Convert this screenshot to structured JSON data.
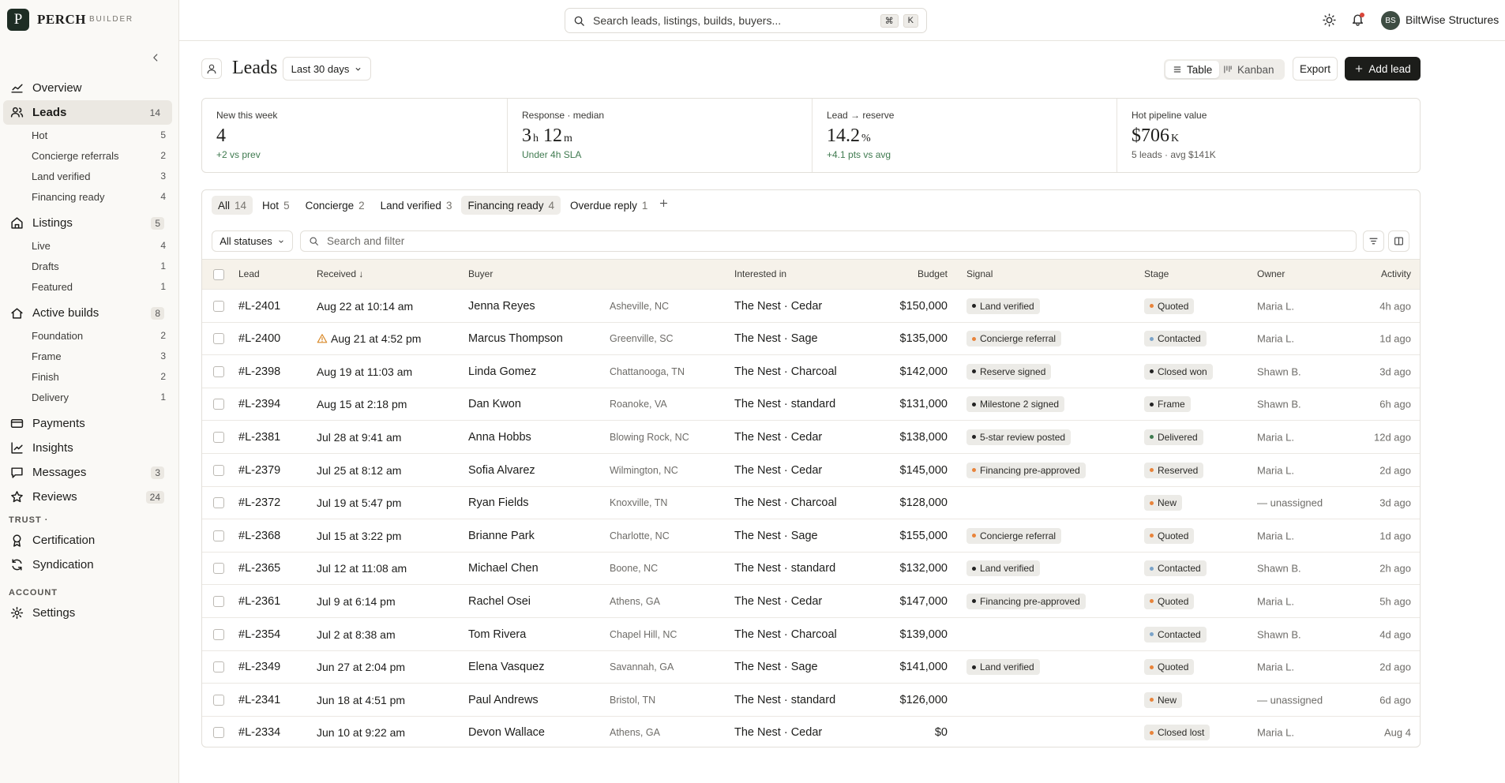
{
  "brand": {
    "logo": "P",
    "name": "PERCH",
    "tag": "BUILDER"
  },
  "search": {
    "placeholder": "Search leads, listings, builds, buyers...",
    "keys": [
      "⌘",
      "K"
    ]
  },
  "account": {
    "initials": "BS",
    "name": "BiltWise Structures"
  },
  "nav": [
    {
      "label": "Overview"
    },
    {
      "label": "Leads",
      "count": 14,
      "active": true,
      "children": [
        {
          "label": "Hot",
          "count": 5
        },
        {
          "label": "Concierge referrals",
          "count": 2
        },
        {
          "label": "Land verified",
          "count": 3
        },
        {
          "label": "Financing ready",
          "count": 4
        }
      ]
    },
    {
      "label": "Listings",
      "count": 5,
      "children": [
        {
          "label": "Live",
          "count": 4
        },
        {
          "label": "Drafts",
          "count": 1
        },
        {
          "label": "Featured",
          "count": 1
        }
      ]
    },
    {
      "label": "Active builds",
      "count": 8,
      "children": [
        {
          "label": "Foundation",
          "count": 2
        },
        {
          "label": "Frame",
          "count": 3
        },
        {
          "label": "Finish",
          "count": 2
        },
        {
          "label": "Delivery",
          "count": 1
        }
      ]
    },
    {
      "label": "Payments"
    },
    {
      "label": "Insights"
    },
    {
      "label": "Messages",
      "count": 3
    },
    {
      "label": "Reviews",
      "count": 24
    }
  ],
  "sections": [
    {
      "title": "TRUST ·",
      "items": [
        {
          "label": "Certification"
        },
        {
          "label": "Syndication"
        }
      ]
    },
    {
      "title": "ACCOUNT",
      "items": [
        {
          "label": "Settings"
        }
      ]
    }
  ],
  "header": {
    "title": "Leads",
    "range": "Last 30 days",
    "views": [
      "Table",
      "Kanban"
    ],
    "export": "Export",
    "add": "Add lead"
  },
  "stats": [
    {
      "label": "New this week",
      "value": [
        {
          "n": "4"
        }
      ],
      "sub": "+2 vs prev",
      "tone": "up"
    },
    {
      "label": "Response · median",
      "value": [
        {
          "n": "3",
          "u": "h"
        },
        {
          "n": "12",
          "u": "m"
        }
      ],
      "sub": "Under 4h SLA",
      "tone": "up"
    },
    {
      "label": "Lead → reserve",
      "value": [
        {
          "n": "14.2",
          "u": "%"
        }
      ],
      "sub": "+4.1 pts vs avg",
      "tone": "up"
    },
    {
      "label": "Hot pipeline value",
      "value": [
        {
          "n": "$706",
          "u": "K"
        }
      ],
      "sub": "5 leads · avg $141K",
      "tone": "muted"
    }
  ],
  "tabs": [
    {
      "label": "All",
      "count": 14,
      "selected": true
    },
    {
      "label": "Hot",
      "count": 5
    },
    {
      "label": "Concierge",
      "count": 2
    },
    {
      "label": "Land verified",
      "count": 3
    },
    {
      "label": "Financing ready",
      "count": 4,
      "selected": true
    },
    {
      "label": "Overdue reply",
      "count": 1
    }
  ],
  "filters": {
    "status": "All statuses",
    "search": "Search and filter"
  },
  "table": {
    "columns": [
      "Lead",
      "Received ↓",
      "Buyer",
      "Interested in",
      "Budget",
      "Signal",
      "Stage",
      "Owner",
      "Activity"
    ],
    "rows": [
      {
        "id": "#L-2401",
        "received": "Aug 22 at 10:14 am",
        "buyer": "Jenna Reyes",
        "location": "Asheville, NC",
        "interest": "The Nest · Cedar",
        "budget": "$150,000",
        "signal": {
          "text": "Land verified",
          "color": "#222222"
        },
        "stage": {
          "text": "Quoted",
          "color": "#e8833a"
        },
        "owner": "Maria L.",
        "activity": "4h ago"
      },
      {
        "id": "#L-2400",
        "received": "Aug 21 at 4:52 pm",
        "warn": true,
        "buyer": "Marcus Thompson",
        "location": "Greenville, SC",
        "interest": "The Nest · Sage",
        "budget": "$135,000",
        "signal": {
          "text": "Concierge referral",
          "color": "#e8833a"
        },
        "stage": {
          "text": "Contacted",
          "color": "#7aa3c9"
        },
        "owner": "Maria L.",
        "activity": "1d ago"
      },
      {
        "id": "#L-2398",
        "received": "Aug 19 at 11:03 am",
        "buyer": "Linda Gomez",
        "location": "Chattanooga, TN",
        "interest": "The Nest · Charcoal",
        "budget": "$142,000",
        "signal": {
          "text": "Reserve signed",
          "color": "#222222"
        },
        "stage": {
          "text": "Closed won",
          "color": "#222222"
        },
        "owner": "Shawn B.",
        "activity": "3d ago"
      },
      {
        "id": "#L-2394",
        "received": "Aug 15 at 2:18 pm",
        "buyer": "Dan Kwon",
        "location": "Roanoke, VA",
        "interest": "The Nest · standard",
        "budget": "$131,000",
        "signal": {
          "text": "Milestone 2 signed",
          "color": "#222222"
        },
        "stage": {
          "text": "Frame",
          "color": "#222222"
        },
        "owner": "Shawn B.",
        "activity": "6h ago"
      },
      {
        "id": "#L-2381",
        "received": "Jul 28 at 9:41 am",
        "buyer": "Anna Hobbs",
        "location": "Blowing Rock, NC",
        "interest": "The Nest · Cedar",
        "budget": "$138,000",
        "signal": {
          "text": "5-star review posted",
          "color": "#222222"
        },
        "stage": {
          "text": "Delivered",
          "color": "#3f7a4f"
        },
        "owner": "Maria L.",
        "activity": "12d ago"
      },
      {
        "id": "#L-2379",
        "received": "Jul 25 at 8:12 am",
        "buyer": "Sofia Alvarez",
        "location": "Wilmington, NC",
        "interest": "The Nest · Cedar",
        "budget": "$145,000",
        "signal": {
          "text": "Financing pre-approved",
          "color": "#e8833a"
        },
        "stage": {
          "text": "Reserved",
          "color": "#e8833a"
        },
        "owner": "Maria L.",
        "activity": "2d ago"
      },
      {
        "id": "#L-2372",
        "received": "Jul 19 at 5:47 pm",
        "buyer": "Ryan Fields",
        "location": "Knoxville, TN",
        "interest": "The Nest · Charcoal",
        "budget": "$128,000",
        "stage": {
          "text": "New",
          "color": "#e8833a"
        },
        "owner": "— unassigned",
        "activity": "3d ago"
      },
      {
        "id": "#L-2368",
        "received": "Jul 15 at 3:22 pm",
        "buyer": "Brianne Park",
        "location": "Charlotte, NC",
        "interest": "The Nest · Sage",
        "budget": "$155,000",
        "signal": {
          "text": "Concierge referral",
          "color": "#e8833a"
        },
        "stage": {
          "text": "Quoted",
          "color": "#e8833a"
        },
        "owner": "Maria L.",
        "activity": "1d ago"
      },
      {
        "id": "#L-2365",
        "received": "Jul 12 at 11:08 am",
        "buyer": "Michael Chen",
        "location": "Boone, NC",
        "interest": "The Nest · standard",
        "budget": "$132,000",
        "signal": {
          "text": "Land verified",
          "color": "#222222"
        },
        "stage": {
          "text": "Contacted",
          "color": "#7aa3c9"
        },
        "owner": "Shawn B.",
        "activity": "2h ago"
      },
      {
        "id": "#L-2361",
        "received": "Jul 9 at 6:14 pm",
        "buyer": "Rachel Osei",
        "location": "Athens, GA",
        "interest": "The Nest · Cedar",
        "budget": "$147,000",
        "signal": {
          "text": "Financing pre-approved",
          "color": "#222222"
        },
        "stage": {
          "text": "Quoted",
          "color": "#e8833a"
        },
        "owner": "Maria L.",
        "activity": "5h ago"
      },
      {
        "id": "#L-2354",
        "received": "Jul 2 at 8:38 am",
        "buyer": "Tom Rivera",
        "location": "Chapel Hill, NC",
        "interest": "The Nest · Charcoal",
        "budget": "$139,000",
        "stage": {
          "text": "Contacted",
          "color": "#7aa3c9"
        },
        "owner": "Shawn B.",
        "activity": "4d ago"
      },
      {
        "id": "#L-2349",
        "received": "Jun 27 at 2:04 pm",
        "buyer": "Elena Vasquez",
        "location": "Savannah, GA",
        "interest": "The Nest · Sage",
        "budget": "$141,000",
        "signal": {
          "text": "Land verified",
          "color": "#222222"
        },
        "stage": {
          "text": "Quoted",
          "color": "#e8833a"
        },
        "owner": "Maria L.",
        "activity": "2d ago"
      },
      {
        "id": "#L-2341",
        "received": "Jun 18 at 4:51 pm",
        "buyer": "Paul Andrews",
        "location": "Bristol, TN",
        "interest": "The Nest · standard",
        "budget": "$126,000",
        "stage": {
          "text": "New",
          "color": "#e8833a"
        },
        "owner": "— unassigned",
        "activity": "6d ago"
      },
      {
        "id": "#L-2334",
        "received": "Jun 10 at 9:22 am",
        "buyer": "Devon Wallace",
        "location": "Athens, GA",
        "interest": "The Nest · Cedar",
        "budget": "$0",
        "stage": {
          "text": "Closed lost",
          "color": "#e8833a"
        },
        "owner": "Maria L.",
        "activity": "Aug 4"
      }
    ]
  }
}
